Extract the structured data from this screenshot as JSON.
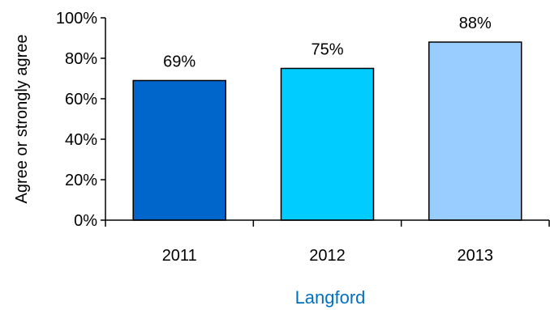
{
  "chart_data": {
    "type": "bar",
    "categories": [
      "2011",
      "2012",
      "2013"
    ],
    "values": [
      69,
      75,
      88
    ],
    "data_labels": [
      "69%",
      "75%",
      "88%"
    ],
    "ylabel": "Agree or strongly agree",
    "xlabel": "Langford",
    "ylim": [
      0,
      100
    ],
    "yticks": [
      0,
      20,
      40,
      60,
      80,
      100
    ],
    "ytick_labels": [
      "0%",
      "20%",
      "40%",
      "60%",
      "80%",
      "100%"
    ],
    "grid": false,
    "bar_colors": [
      "#0066CC",
      "#00CCFF",
      "#99CCFF"
    ],
    "group_label_color": "#0070C0"
  }
}
